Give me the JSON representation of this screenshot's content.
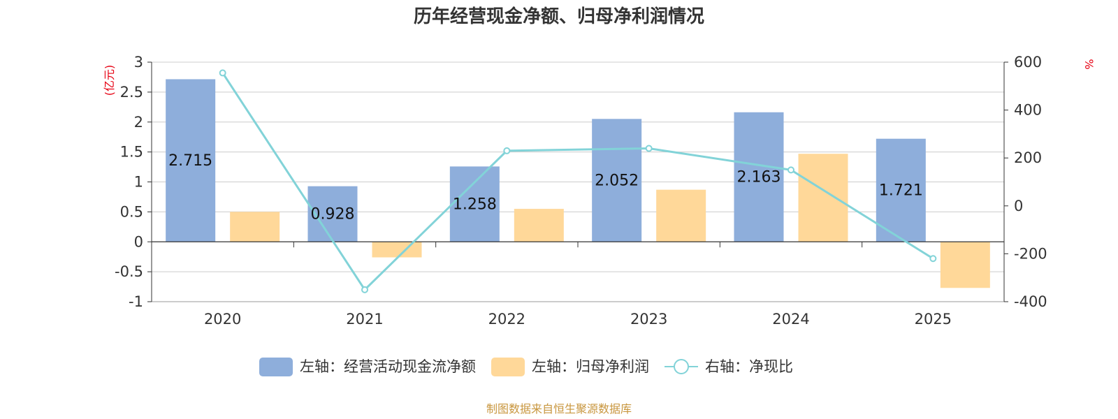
{
  "chart_data": {
    "type": "bar",
    "title": "历年经营现金净额、归母净利润情况",
    "categories": [
      "2020",
      "2021",
      "2022",
      "2023",
      "2024",
      "2025"
    ],
    "y_left": {
      "unit": "(亿元)",
      "ticks": [
        "3",
        "2.5",
        "2",
        "1.5",
        "1",
        "0.5",
        "0",
        "-0.5",
        "-1"
      ],
      "ylim": [
        -1,
        3
      ]
    },
    "y_right": {
      "unit": "%",
      "ticks": [
        "600",
        "400",
        "200",
        "0",
        "-200",
        "-400"
      ],
      "ylim": [
        -400,
        600
      ]
    },
    "series": [
      {
        "name": "左轴：经营活动现金流净额",
        "type": "bar",
        "axis": "left",
        "color": "#8eaedb",
        "values": [
          2.715,
          0.928,
          1.258,
          2.052,
          2.163,
          1.721
        ],
        "labels": [
          "2.715",
          "0.928",
          "1.258",
          "2.052",
          "2.163",
          "1.721"
        ]
      },
      {
        "name": "左轴：归母净利润",
        "type": "bar",
        "axis": "left",
        "color": "#ffd899",
        "values": [
          0.5,
          -0.26,
          0.55,
          0.87,
          1.47,
          -0.77
        ]
      },
      {
        "name": "右轴：净现比",
        "type": "line",
        "axis": "right",
        "color": "#82d3d8",
        "values": [
          555,
          -350,
          230,
          240,
          150,
          -220
        ]
      }
    ],
    "grid": true,
    "legend": "bottom"
  },
  "source": "制图数据来自恒生聚源数据库"
}
